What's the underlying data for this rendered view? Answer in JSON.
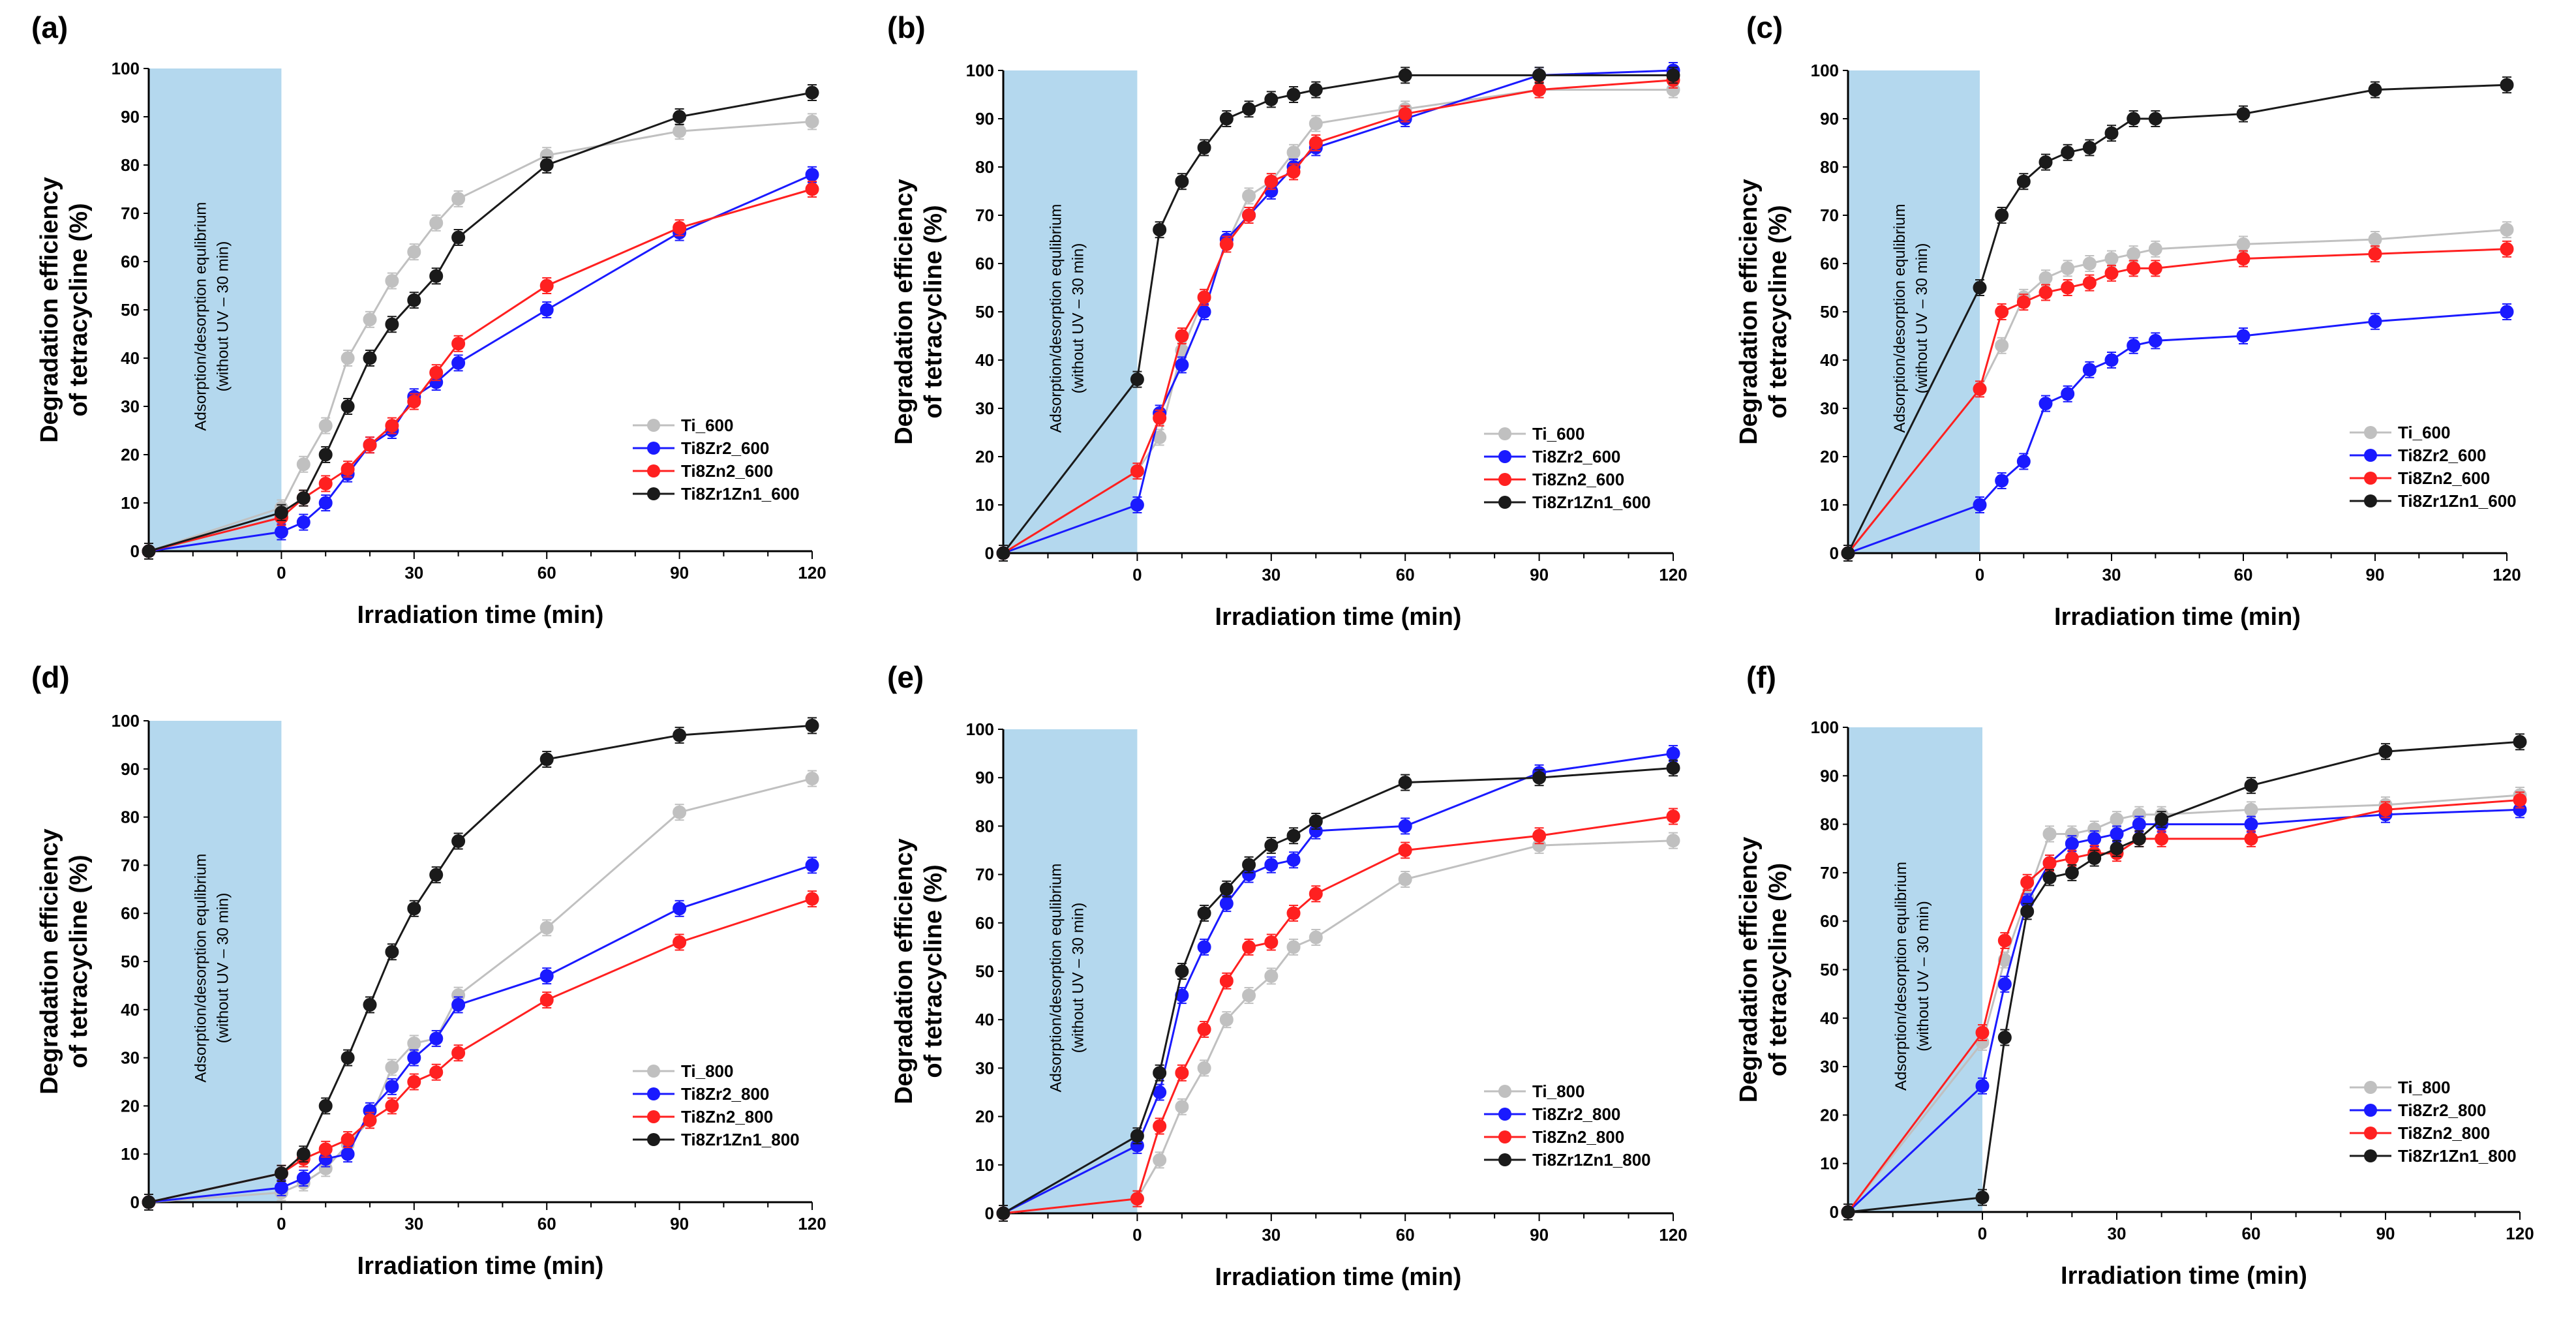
{
  "figure": {
    "shared": {
      "xlabel": "Irradiation time (min)",
      "ylabel_line1": "Degradation efficiency",
      "ylabel_line2": "of tetracycline (%)",
      "adsorption_line1": "Adsorption/desorption equlibrium",
      "adsorption_line2": "(without UV – 30 min)",
      "x_ticks": [
        "0",
        "30",
        "60",
        "90",
        "120"
      ],
      "y_ticks": [
        "0",
        "10",
        "20",
        "30",
        "40",
        "50",
        "60",
        "70",
        "80",
        "90",
        "100"
      ],
      "adsorption_band_color": "#b4d8ee",
      "series_colors": [
        "#c0c0c0",
        "#1a1aff",
        "#ff2020",
        "#1a1a1a"
      ]
    }
  },
  "chart_data": [
    {
      "type": "line",
      "panel": "(a)",
      "title": "",
      "xlabel": "Irradiation time (min)",
      "ylabel": "Degradation efficiency of tetracycline (%)",
      "xlim": [
        -30,
        120
      ],
      "ylim": [
        0,
        100
      ],
      "x": [
        -30,
        0,
        5,
        10,
        15,
        20,
        25,
        30,
        35,
        40,
        60,
        90,
        120
      ],
      "series": [
        {
          "name": "Ti_600",
          "values": [
            0,
            9,
            18,
            26,
            40,
            48,
            56,
            62,
            68,
            73,
            82,
            87,
            89
          ]
        },
        {
          "name": "Ti8Zr2_600",
          "values": [
            0,
            4,
            6,
            10,
            16,
            22,
            25,
            32,
            35,
            39,
            50,
            66,
            78
          ]
        },
        {
          "name": "Ti8Zn2_600",
          "values": [
            0,
            7,
            11,
            14,
            17,
            22,
            26,
            31,
            37,
            43,
            55,
            67,
            75
          ]
        },
        {
          "name": "Ti8Zr1Zn1_600",
          "values": [
            0,
            8,
            11,
            20,
            30,
            40,
            47,
            52,
            57,
            65,
            80,
            90,
            95
          ]
        }
      ]
    },
    {
      "type": "line",
      "panel": "(b)",
      "title": "",
      "xlabel": "Irradiation time (min)",
      "ylabel": "Degradation efficiency of tetracycline (%)",
      "xlim": [
        -30,
        120
      ],
      "ylim": [
        0,
        100
      ],
      "x": [
        -30,
        0,
        5,
        10,
        15,
        20,
        25,
        30,
        35,
        40,
        60,
        90,
        120
      ],
      "series": [
        {
          "name": "Ti_600",
          "values": [
            0,
            17,
            24,
            42,
            53,
            64,
            74,
            77,
            83,
            89,
            92,
            96,
            96
          ]
        },
        {
          "name": "Ti8Zr2_600",
          "values": [
            0,
            10,
            29,
            39,
            50,
            65,
            70,
            75,
            80,
            84,
            90,
            99,
            100
          ]
        },
        {
          "name": "Ti8Zn2_600",
          "values": [
            0,
            17,
            28,
            45,
            53,
            64,
            70,
            77,
            79,
            85,
            91,
            96,
            98
          ]
        },
        {
          "name": "Ti8Zr1Zn1_600",
          "values": [
            0,
            36,
            67,
            77,
            84,
            90,
            92,
            94,
            95,
            96,
            99,
            99,
            99
          ]
        }
      ]
    },
    {
      "type": "line",
      "panel": "(c)",
      "title": "",
      "xlabel": "Irradiation time (min)",
      "ylabel": "Degradation efficiency of tetracycline (%)",
      "xlim": [
        -30,
        120
      ],
      "ylim": [
        0,
        100
      ],
      "x": [
        -30,
        0,
        5,
        10,
        15,
        20,
        25,
        30,
        35,
        40,
        60,
        90,
        120
      ],
      "series": [
        {
          "name": "Ti_600",
          "values": [
            0,
            34,
            43,
            53,
            57,
            59,
            60,
            61,
            62,
            63,
            64,
            65,
            67
          ]
        },
        {
          "name": "Ti8Zr2_600",
          "values": [
            0,
            10,
            15,
            19,
            31,
            33,
            38,
            40,
            43,
            44,
            45,
            48,
            50
          ]
        },
        {
          "name": "Ti8Zn2_600",
          "values": [
            0,
            34,
            50,
            52,
            54,
            55,
            56,
            58,
            59,
            59,
            61,
            62,
            63
          ]
        },
        {
          "name": "Ti8Zr1Zn1_600",
          "values": [
            0,
            55,
            70,
            77,
            81,
            83,
            84,
            87,
            90,
            90,
            91,
            96,
            97
          ]
        }
      ]
    },
    {
      "type": "line",
      "panel": "(d)",
      "title": "",
      "xlabel": "Irradiation time (min)",
      "ylabel": "Degradation efficiency of tetracycline (%)",
      "xlim": [
        -30,
        120
      ],
      "ylim": [
        0,
        100
      ],
      "x": [
        -30,
        0,
        5,
        10,
        15,
        20,
        25,
        30,
        35,
        40,
        60,
        90,
        120
      ],
      "series": [
        {
          "name": "Ti_800",
          "values": [
            0,
            2,
            4,
            7,
            12,
            17,
            28,
            33,
            34,
            43,
            57,
            81,
            88
          ]
        },
        {
          "name": "Ti8Zr2_800",
          "values": [
            0,
            3,
            5,
            9,
            10,
            19,
            24,
            30,
            34,
            41,
            47,
            61,
            70
          ]
        },
        {
          "name": "Ti8Zn2_800",
          "values": [
            0,
            6,
            9,
            11,
            13,
            17,
            20,
            25,
            27,
            31,
            42,
            54,
            63
          ]
        },
        {
          "name": "Ti8Zr1Zn1_800",
          "values": [
            0,
            6,
            10,
            20,
            30,
            41,
            52,
            61,
            68,
            75,
            92,
            97,
            99
          ]
        }
      ]
    },
    {
      "type": "line",
      "panel": "(e)",
      "title": "",
      "xlabel": "Irradiation time (min)",
      "ylabel": "Degradation efficiency of tetracycline (%)",
      "xlim": [
        -30,
        120
      ],
      "ylim": [
        0,
        100
      ],
      "x": [
        -30,
        0,
        5,
        10,
        15,
        20,
        25,
        30,
        35,
        40,
        60,
        90,
        120
      ],
      "series": [
        {
          "name": "Ti_800",
          "values": [
            0,
            3,
            11,
            22,
            30,
            40,
            45,
            49,
            55,
            57,
            69,
            76,
            77
          ]
        },
        {
          "name": "Ti8Zr2_800",
          "values": [
            0,
            14,
            25,
            45,
            55,
            64,
            70,
            72,
            73,
            79,
            80,
            91,
            95
          ]
        },
        {
          "name": "Ti8Zn2_800",
          "values": [
            0,
            3,
            18,
            29,
            38,
            48,
            55,
            56,
            62,
            66,
            75,
            78,
            82
          ]
        },
        {
          "name": "Ti8Zr1Zn1_800",
          "values": [
            0,
            16,
            29,
            50,
            62,
            67,
            72,
            76,
            78,
            81,
            89,
            90,
            92
          ]
        }
      ]
    },
    {
      "type": "line",
      "panel": "(f)",
      "title": "",
      "xlabel": "Irradiation time (min)",
      "ylabel": "Degradation efficiency of tetracycline (%)",
      "xlim": [
        -30,
        120
      ],
      "ylim": [
        0,
        100
      ],
      "x": [
        -30,
        0,
        5,
        10,
        15,
        20,
        25,
        30,
        35,
        40,
        60,
        90,
        120
      ],
      "series": [
        {
          "name": "Ti_800",
          "values": [
            0,
            35,
            52,
            65,
            78,
            78,
            79,
            81,
            82,
            82,
            83,
            84,
            86
          ]
        },
        {
          "name": "Ti8Zr2_800",
          "values": [
            0,
            26,
            47,
            64,
            72,
            76,
            77,
            78,
            80,
            80,
            80,
            82,
            83
          ]
        },
        {
          "name": "Ti8Zn2_800",
          "values": [
            0,
            37,
            56,
            68,
            72,
            73,
            74,
            74,
            77,
            77,
            77,
            83,
            85
          ]
        },
        {
          "name": "Ti8Zr1Zn1_800",
          "values": [
            0,
            3,
            36,
            62,
            69,
            70,
            73,
            75,
            77,
            81,
            88,
            95,
            97
          ]
        }
      ]
    }
  ]
}
